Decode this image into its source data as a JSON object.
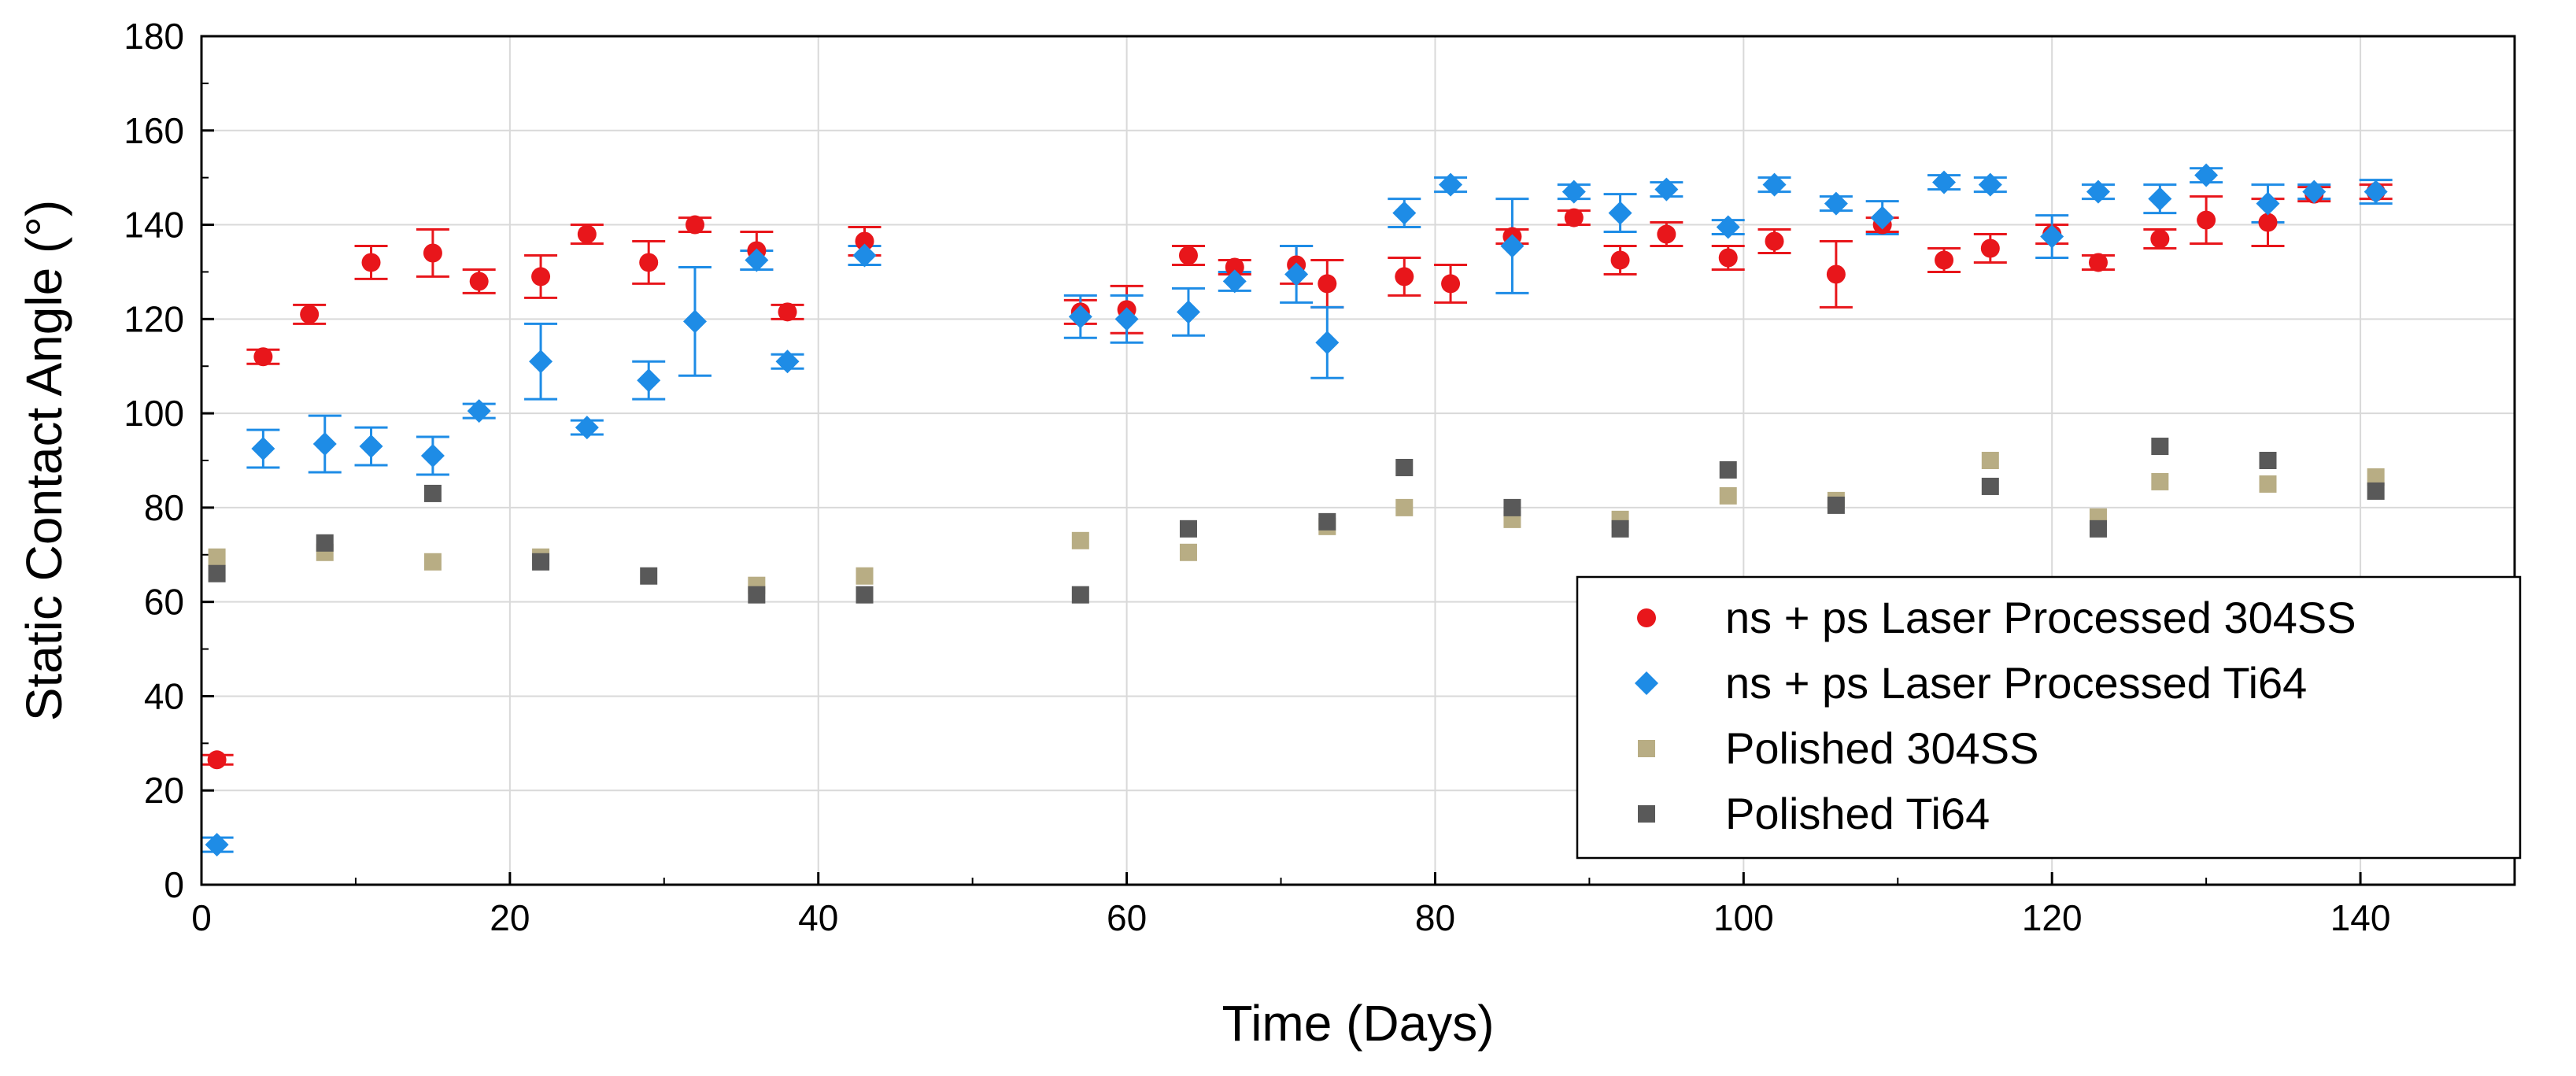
{
  "chart_data": {
    "type": "scatter",
    "title": "",
    "xlabel": "Time (Days)",
    "ylabel": "Static Contact Angle (°)",
    "xlim": [
      0,
      150
    ],
    "ylim": [
      0,
      180
    ],
    "xticks": [
      0,
      20,
      40,
      60,
      80,
      100,
      120,
      140
    ],
    "yticks": [
      0,
      20,
      40,
      60,
      80,
      100,
      120,
      140,
      160,
      180
    ],
    "grid": true,
    "legend_position": "bottom-right",
    "series": [
      {
        "name": "ns + ps Laser Processed 304SS",
        "marker": "circle",
        "color": "#e8161b",
        "points": [
          {
            "x": 1,
            "y": 26.5,
            "err": 1.0
          },
          {
            "x": 4,
            "y": 112,
            "err": 1.5
          },
          {
            "x": 7,
            "y": 121,
            "err": 2
          },
          {
            "x": 11,
            "y": 132,
            "err": 3.5
          },
          {
            "x": 15,
            "y": 134,
            "err": 5
          },
          {
            "x": 18,
            "y": 128,
            "err": 2.5
          },
          {
            "x": 22,
            "y": 129,
            "err": 4.5
          },
          {
            "x": 25,
            "y": 138,
            "err": 2
          },
          {
            "x": 29,
            "y": 132,
            "err": 4.5
          },
          {
            "x": 32,
            "y": 140,
            "err": 1.5
          },
          {
            "x": 36,
            "y": 134.5,
            "err": 4
          },
          {
            "x": 38,
            "y": 121.5,
            "err": 1.5
          },
          {
            "x": 43,
            "y": 136.5,
            "err": 3
          },
          {
            "x": 57,
            "y": 121.5,
            "err": 2.5
          },
          {
            "x": 60,
            "y": 122,
            "err": 5
          },
          {
            "x": 64,
            "y": 133.5,
            "err": 2
          },
          {
            "x": 67,
            "y": 131,
            "err": 1.5
          },
          {
            "x": 71,
            "y": 131.5,
            "err": 4
          },
          {
            "x": 73,
            "y": 127.5,
            "err": 5
          },
          {
            "x": 78,
            "y": 129,
            "err": 4
          },
          {
            "x": 81,
            "y": 127.5,
            "err": 4
          },
          {
            "x": 85,
            "y": 137.5,
            "err": 1.5
          },
          {
            "x": 89,
            "y": 141.5,
            "err": 1.5
          },
          {
            "x": 92,
            "y": 132.5,
            "err": 3
          },
          {
            "x": 95,
            "y": 138,
            "err": 2.5
          },
          {
            "x": 99,
            "y": 133,
            "err": 2.5
          },
          {
            "x": 102,
            "y": 136.5,
            "err": 2.5
          },
          {
            "x": 106,
            "y": 129.5,
            "err": 7
          },
          {
            "x": 109,
            "y": 140,
            "err": 1.5
          },
          {
            "x": 113,
            "y": 132.5,
            "err": 2.5
          },
          {
            "x": 116,
            "y": 135,
            "err": 3
          },
          {
            "x": 120,
            "y": 138,
            "err": 2
          },
          {
            "x": 123,
            "y": 132,
            "err": 1.5
          },
          {
            "x": 127,
            "y": 137,
            "err": 2
          },
          {
            "x": 130,
            "y": 141,
            "err": 5
          },
          {
            "x": 134,
            "y": 140.5,
            "err": 5
          },
          {
            "x": 137,
            "y": 146.5,
            "err": 1.5
          },
          {
            "x": 141,
            "y": 147,
            "err": 1.5
          }
        ]
      },
      {
        "name": "ns + ps Laser Processed Ti64",
        "marker": "diamond",
        "color": "#1e8ce6",
        "points": [
          {
            "x": 1,
            "y": 8.5,
            "err": 1.5
          },
          {
            "x": 4,
            "y": 92.5,
            "err": 4
          },
          {
            "x": 8,
            "y": 93.5,
            "err": 6
          },
          {
            "x": 11,
            "y": 93,
            "err": 4
          },
          {
            "x": 15,
            "y": 91,
            "err": 4
          },
          {
            "x": 18,
            "y": 100.5,
            "err": 1.5
          },
          {
            "x": 22,
            "y": 111,
            "err": 8
          },
          {
            "x": 25,
            "y": 97,
            "err": 1.5
          },
          {
            "x": 29,
            "y": 107,
            "err": 4
          },
          {
            "x": 32,
            "y": 119.5,
            "err": 11.5
          },
          {
            "x": 36,
            "y": 132.5,
            "err": 2
          },
          {
            "x": 38,
            "y": 111,
            "err": 1.5
          },
          {
            "x": 43,
            "y": 133.5,
            "err": 2
          },
          {
            "x": 57,
            "y": 120.5,
            "err": 4.5
          },
          {
            "x": 60,
            "y": 120,
            "err": 5
          },
          {
            "x": 64,
            "y": 121.5,
            "err": 5
          },
          {
            "x": 67,
            "y": 128,
            "err": 2
          },
          {
            "x": 71,
            "y": 129.5,
            "err": 6
          },
          {
            "x": 73,
            "y": 115,
            "err": 7.5
          },
          {
            "x": 78,
            "y": 142.5,
            "err": 3
          },
          {
            "x": 81,
            "y": 148.5,
            "err": 1.5
          },
          {
            "x": 85,
            "y": 135.5,
            "err": 10
          },
          {
            "x": 89,
            "y": 147,
            "err": 1.5
          },
          {
            "x": 92,
            "y": 142.5,
            "err": 4
          },
          {
            "x": 95,
            "y": 147.5,
            "err": 1.5
          },
          {
            "x": 99,
            "y": 139.5,
            "err": 1.5
          },
          {
            "x": 102,
            "y": 148.5,
            "err": 1.5
          },
          {
            "x": 106,
            "y": 144.5,
            "err": 1.5
          },
          {
            "x": 109,
            "y": 141.5,
            "err": 3.5
          },
          {
            "x": 113,
            "y": 149,
            "err": 1.5
          },
          {
            "x": 116,
            "y": 148.5,
            "err": 1.5
          },
          {
            "x": 120,
            "y": 137.5,
            "err": 4.5
          },
          {
            "x": 123,
            "y": 147,
            "err": 1.5
          },
          {
            "x": 127,
            "y": 145.5,
            "err": 3
          },
          {
            "x": 130,
            "y": 150.5,
            "err": 1.5
          },
          {
            "x": 134,
            "y": 144.5,
            "err": 4
          },
          {
            "x": 137,
            "y": 147,
            "err": 1.5
          },
          {
            "x": 141,
            "y": 147,
            "err": 2.5
          }
        ]
      },
      {
        "name": "Polished 304SS",
        "marker": "square",
        "color": "#b8ad84",
        "points": [
          {
            "x": 1,
            "y": 69.5
          },
          {
            "x": 8,
            "y": 70.5
          },
          {
            "x": 15,
            "y": 68.5
          },
          {
            "x": 22,
            "y": 69.5
          },
          {
            "x": 36,
            "y": 63.5
          },
          {
            "x": 43,
            "y": 65.5
          },
          {
            "x": 57,
            "y": 73
          },
          {
            "x": 64,
            "y": 70.5
          },
          {
            "x": 73,
            "y": 76
          },
          {
            "x": 78,
            "y": 80
          },
          {
            "x": 85,
            "y": 77.5
          },
          {
            "x": 92,
            "y": 77.5
          },
          {
            "x": 99,
            "y": 82.5
          },
          {
            "x": 106,
            "y": 81.5
          },
          {
            "x": 116,
            "y": 90
          },
          {
            "x": 123,
            "y": 78
          },
          {
            "x": 127,
            "y": 85.5
          },
          {
            "x": 134,
            "y": 85
          },
          {
            "x": 141,
            "y": 86.5
          }
        ]
      },
      {
        "name": "Polished Ti64",
        "marker": "square",
        "color": "#595959",
        "points": [
          {
            "x": 1,
            "y": 66
          },
          {
            "x": 8,
            "y": 72.5
          },
          {
            "x": 15,
            "y": 83
          },
          {
            "x": 22,
            "y": 68.5
          },
          {
            "x": 29,
            "y": 65.5
          },
          {
            "x": 36,
            "y": 61.5
          },
          {
            "x": 43,
            "y": 61.5
          },
          {
            "x": 57,
            "y": 61.5
          },
          {
            "x": 64,
            "y": 75.5
          },
          {
            "x": 73,
            "y": 77
          },
          {
            "x": 78,
            "y": 88.5
          },
          {
            "x": 85,
            "y": 80
          },
          {
            "x": 92,
            "y": 75.5
          },
          {
            "x": 99,
            "y": 88
          },
          {
            "x": 106,
            "y": 80.5
          },
          {
            "x": 116,
            "y": 84.5
          },
          {
            "x": 123,
            "y": 75.5
          },
          {
            "x": 127,
            "y": 93
          },
          {
            "x": 134,
            "y": 90
          },
          {
            "x": 141,
            "y": 83.5
          }
        ]
      }
    ]
  }
}
